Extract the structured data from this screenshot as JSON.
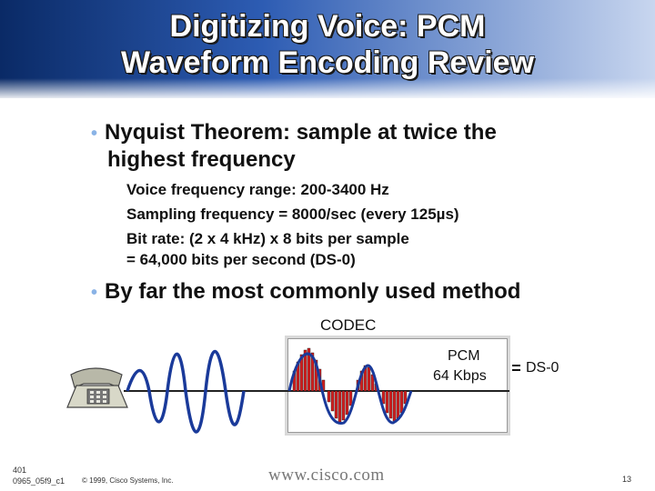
{
  "slide": {
    "title_line1": "Digitizing Voice: PCM",
    "title_line2": "Waveform Encoding Review",
    "bullet1_line1": "Nyquist Theorem: sample at twice the",
    "bullet1_line2": "highest frequency",
    "sub1": "Voice frequency range: 200-3400 Hz",
    "sub2": "Sampling frequency = 8000/sec (every 125µs)",
    "sub3": "Bit rate:  (2 x 4 kHz) x 8 bits per sample",
    "sub4": "= 64,000 bits per second (DS-0)",
    "bullet2": "By far the most commonly used method",
    "codec_label": "CODEC",
    "pcm_label": "PCM",
    "kbps_label": "64 Kbps",
    "ds0_label": "= DS-0",
    "footer_id_line1": "401",
    "footer_id_line2": "0965_05f9_c1",
    "copyright": "© 1999, Cisco Systems, Inc.",
    "website": "www.cisco.com",
    "page_number": "13"
  },
  "colors": {
    "bullet_dot": "#8ab3e6",
    "wave_blue": "#1a3a9a",
    "sample_red": "#d42020"
  }
}
